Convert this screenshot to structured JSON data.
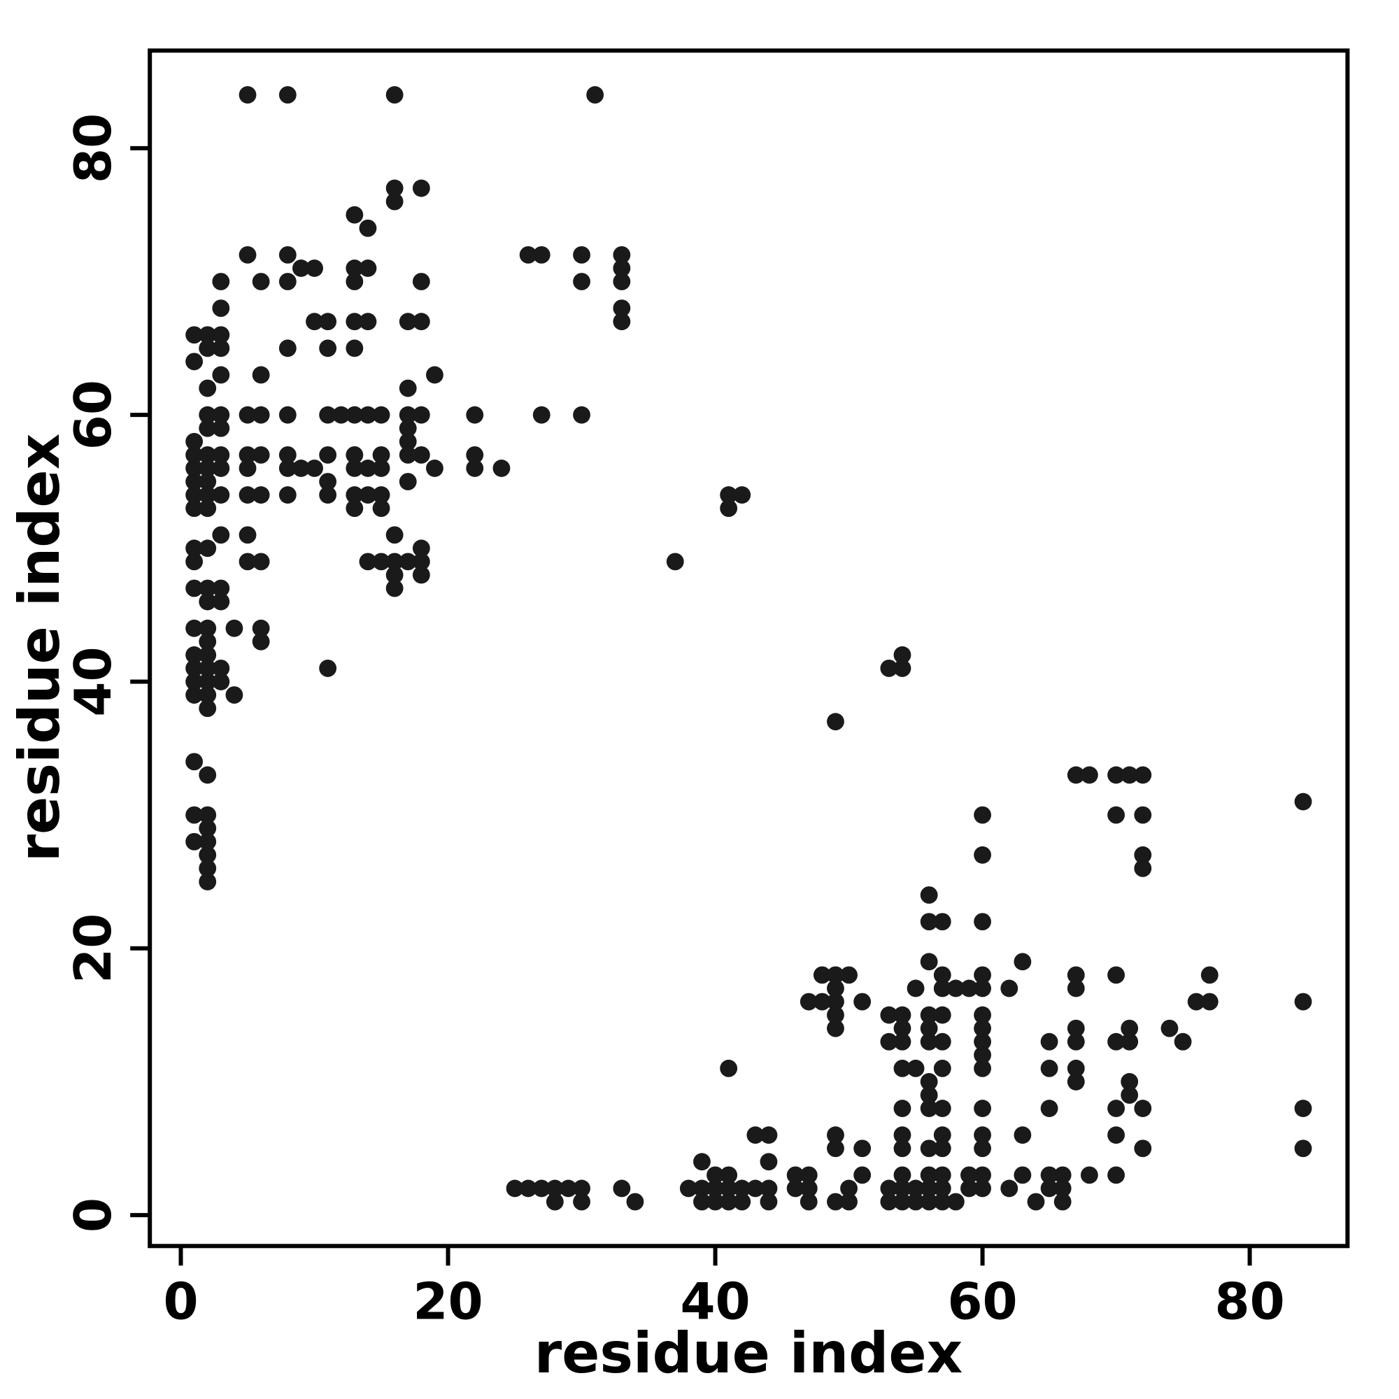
{
  "chart_data": {
    "type": "scatter",
    "title": "",
    "xlabel": "residue index",
    "ylabel": "residue index",
    "xlim": [
      -2.32,
      87.32
    ],
    "ylim": [
      -2.32,
      87.32
    ],
    "xticks": [
      0,
      20,
      40,
      60,
      80
    ],
    "yticks": [
      0,
      20,
      40,
      60,
      80
    ],
    "grid": false,
    "legend": "none",
    "marker": {
      "shape": "filled-circle",
      "color": "#1a1a1a",
      "radius_units": 0.65
    },
    "symmetric": true,
    "contacts": [
      [
        5,
        84
      ],
      [
        8,
        84
      ],
      [
        16,
        84
      ],
      [
        31,
        84
      ],
      [
        16,
        77
      ],
      [
        18,
        77
      ],
      [
        16,
        76
      ],
      [
        13,
        75
      ],
      [
        14,
        74
      ],
      [
        5,
        72
      ],
      [
        8,
        72
      ],
      [
        26,
        72
      ],
      [
        27,
        72
      ],
      [
        30,
        72
      ],
      [
        33,
        72
      ],
      [
        9,
        71
      ],
      [
        10,
        71
      ],
      [
        13,
        71
      ],
      [
        14,
        71
      ],
      [
        33,
        71
      ],
      [
        3,
        70
      ],
      [
        6,
        70
      ],
      [
        8,
        70
      ],
      [
        13,
        70
      ],
      [
        18,
        70
      ],
      [
        30,
        70
      ],
      [
        33,
        70
      ],
      [
        3,
        68
      ],
      [
        33,
        68
      ],
      [
        10,
        67
      ],
      [
        11,
        67
      ],
      [
        13,
        67
      ],
      [
        14,
        67
      ],
      [
        17,
        67
      ],
      [
        18,
        67
      ],
      [
        33,
        67
      ],
      [
        1,
        66
      ],
      [
        2,
        66
      ],
      [
        3,
        66
      ],
      [
        2,
        65
      ],
      [
        3,
        65
      ],
      [
        8,
        65
      ],
      [
        11,
        65
      ],
      [
        13,
        65
      ],
      [
        1,
        64
      ],
      [
        3,
        63
      ],
      [
        6,
        63
      ],
      [
        19,
        63
      ],
      [
        2,
        62
      ],
      [
        17,
        62
      ],
      [
        2,
        60
      ],
      [
        3,
        60
      ],
      [
        5,
        60
      ],
      [
        6,
        60
      ],
      [
        8,
        60
      ],
      [
        11,
        60
      ],
      [
        12,
        60
      ],
      [
        13,
        60
      ],
      [
        14,
        60
      ],
      [
        15,
        60
      ],
      [
        17,
        60
      ],
      [
        18,
        60
      ],
      [
        22,
        60
      ],
      [
        27,
        60
      ],
      [
        30,
        60
      ],
      [
        2,
        59
      ],
      [
        3,
        59
      ],
      [
        17,
        59
      ],
      [
        1,
        58
      ],
      [
        17,
        58
      ],
      [
        1,
        57
      ],
      [
        2,
        57
      ],
      [
        3,
        57
      ],
      [
        5,
        57
      ],
      [
        6,
        57
      ],
      [
        8,
        57
      ],
      [
        11,
        57
      ],
      [
        13,
        57
      ],
      [
        15,
        57
      ],
      [
        17,
        57
      ],
      [
        18,
        57
      ],
      [
        22,
        57
      ],
      [
        1,
        56
      ],
      [
        2,
        56
      ],
      [
        3,
        56
      ],
      [
        5,
        56
      ],
      [
        8,
        56
      ],
      [
        9,
        56
      ],
      [
        10,
        56
      ],
      [
        13,
        56
      ],
      [
        14,
        56
      ],
      [
        15,
        56
      ],
      [
        19,
        56
      ],
      [
        22,
        56
      ],
      [
        24,
        56
      ],
      [
        1,
        55
      ],
      [
        2,
        55
      ],
      [
        11,
        55
      ],
      [
        17,
        55
      ],
      [
        1,
        54
      ],
      [
        2,
        54
      ],
      [
        3,
        54
      ],
      [
        5,
        54
      ],
      [
        6,
        54
      ],
      [
        8,
        54
      ],
      [
        11,
        54
      ],
      [
        13,
        54
      ],
      [
        14,
        54
      ],
      [
        15,
        54
      ],
      [
        41,
        54
      ],
      [
        42,
        54
      ],
      [
        1,
        53
      ],
      [
        2,
        53
      ],
      [
        13,
        53
      ],
      [
        15,
        53
      ],
      [
        41,
        53
      ],
      [
        3,
        51
      ],
      [
        5,
        51
      ],
      [
        16,
        51
      ],
      [
        1,
        50
      ],
      [
        2,
        50
      ],
      [
        18,
        50
      ],
      [
        1,
        49
      ],
      [
        5,
        49
      ],
      [
        6,
        49
      ],
      [
        14,
        49
      ],
      [
        15,
        49
      ],
      [
        16,
        49
      ],
      [
        17,
        49
      ],
      [
        18,
        49
      ],
      [
        37,
        49
      ],
      [
        16,
        48
      ],
      [
        18,
        48
      ],
      [
        1,
        47
      ],
      [
        2,
        47
      ],
      [
        3,
        47
      ],
      [
        16,
        47
      ],
      [
        2,
        46
      ],
      [
        3,
        46
      ],
      [
        1,
        44
      ],
      [
        2,
        44
      ],
      [
        4,
        44
      ],
      [
        6,
        44
      ],
      [
        2,
        43
      ],
      [
        6,
        43
      ],
      [
        1,
        42
      ],
      [
        2,
        42
      ],
      [
        1,
        41
      ],
      [
        2,
        41
      ],
      [
        3,
        41
      ],
      [
        11,
        41
      ],
      [
        1,
        40
      ],
      [
        2,
        40
      ],
      [
        3,
        40
      ],
      [
        1,
        39
      ],
      [
        2,
        39
      ],
      [
        4,
        39
      ],
      [
        2,
        38
      ],
      [
        1,
        34
      ],
      [
        2,
        33
      ],
      [
        1,
        30
      ],
      [
        2,
        30
      ],
      [
        2,
        29
      ],
      [
        1,
        28
      ],
      [
        2,
        28
      ],
      [
        2,
        27
      ],
      [
        2,
        26
      ],
      [
        2,
        25
      ]
    ]
  }
}
